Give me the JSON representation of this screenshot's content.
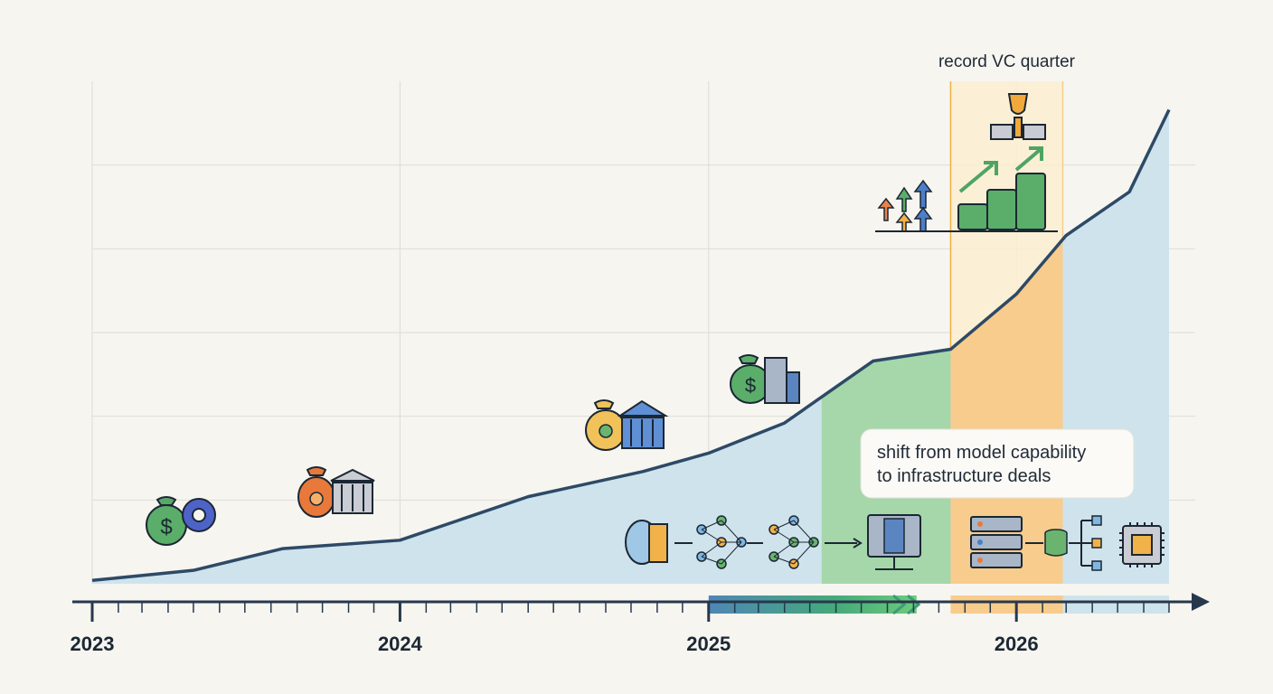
{
  "chart_data": {
    "type": "area",
    "title": "",
    "xlabel": "",
    "ylabel": "",
    "x_ticks": [
      "2023",
      "2024",
      "2025",
      "2026"
    ],
    "x_range": [
      "2023-01-01",
      "2026-07-01"
    ],
    "grid": true,
    "series": [
      {
        "values": [
          {
            "x": "2023-01-01",
            "y": 0.2
          },
          {
            "x": "2023-05-01",
            "y": 0.8
          },
          {
            "x": "2023-08-15",
            "y": 2.1
          },
          {
            "x": "2024-01-01",
            "y": 2.6
          },
          {
            "x": "2024-06-01",
            "y": 5.2
          },
          {
            "x": "2024-10-15",
            "y": 6.7
          },
          {
            "x": "2025-01-01",
            "y": 7.8
          },
          {
            "x": "2025-04-01",
            "y": 9.6
          },
          {
            "x": "2025-07-15",
            "y": 13.3
          },
          {
            "x": "2025-10-15",
            "y": 14.0
          },
          {
            "x": "2026-01-01",
            "y": 17.3
          },
          {
            "x": "2026-03-01",
            "y": 20.8
          },
          {
            "x": "2026-05-15",
            "y": 23.4
          },
          {
            "x": "2026-07-01",
            "y": 28.3
          }
        ]
      }
    ],
    "highlighted_ranges": [
      {
        "from": "2025-05-15",
        "to": "2025-10-15",
        "color": "#a5d7aa"
      },
      {
        "from": "2025-10-15",
        "to": "2026-02-25",
        "color": "#f8cc8c"
      }
    ],
    "annotations": [
      {
        "text": "record VC quarter",
        "from": "2025-10-15",
        "to": "2026-02-25"
      },
      {
        "text_lines": [
          "shift from model capability",
          "to infrastructure deals"
        ],
        "x": "2025-07-15"
      }
    ],
    "colors": {
      "background": "#f6f5f0",
      "area": "#cfe3ed",
      "line": "#2d4a66",
      "grid": "#dedcd6",
      "axis": "#26384c"
    }
  },
  "icons": {
    "money-bag-gear": "money-bag-gear-icon",
    "money-bag-bank": "money-bag-bank-icon",
    "money-bag-building": "money-bag-building-icon",
    "trophy": "trophy-icon",
    "growth-arrows": "growth-arrows-icon",
    "cash-stacks": "cash-stacks-icon",
    "ai-pipeline": [
      "brain-icon",
      "neural-network-icon",
      "neural-network-icon",
      "server-icon",
      "server-rack-icon",
      "database-icon",
      "chip-icon"
    ]
  }
}
